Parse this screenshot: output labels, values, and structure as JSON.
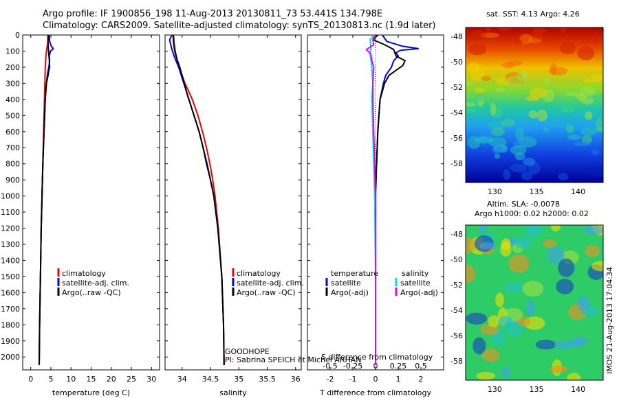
{
  "title": {
    "line1": "Argo profile: IF 1900856_198 11-Aug-2013 20130811_73 53.441S 134.798E",
    "line2": "Climatology: CARS2009. Satellite-adjusted climatology: synTS_20130813.nc (1.9d later)"
  },
  "annotations": {
    "goodhope": "GOODHOPE",
    "pi": "PI: Sabrina SPEICH et Michel ARHAN",
    "watermark": "IMOS 21-Aug-2013 17:04:34",
    "sst_title": "sat. SST: 4.13 Argo: 4.26",
    "sla_title1": "Altim. SLA: -0.0078",
    "sla_title2": "Argo h1000: 0.02 h2000: 0.02"
  },
  "colors": {
    "climatology": "#ee0000",
    "satellite": "#0000dd",
    "argo": "#000000",
    "salinity_sat": "#00dddd",
    "salinity_argo": "#ee00ee"
  },
  "chart_data": [
    {
      "type": "line",
      "id": "temperature",
      "xlabel": "temperature (deg C)",
      "ylabel": "",
      "xlim": [
        -2,
        32
      ],
      "ylim": [
        2080,
        0
      ],
      "xticks": [
        0,
        5,
        10,
        15,
        20,
        25,
        30
      ],
      "yticks": [
        0,
        100,
        200,
        300,
        400,
        500,
        600,
        700,
        800,
        900,
        1000,
        1100,
        1200,
        1300,
        1400,
        1500,
        1600,
        1700,
        1800,
        1900,
        2000
      ],
      "legend": [
        "climatology",
        "satellite-adj. clim.",
        "Argo(..raw -QC)"
      ],
      "series": [
        {
          "name": "climatology",
          "depth": [
            0,
            50,
            100,
            150,
            200,
            300,
            400,
            600,
            800,
            1000,
            1200,
            1500,
            1800,
            2050
          ],
          "values": [
            4.3,
            4.2,
            3.9,
            3.7,
            3.6,
            3.5,
            3.4,
            3.2,
            3.0,
            2.8,
            2.6,
            2.4,
            2.2,
            2.1
          ]
        },
        {
          "name": "satellite-adj. clim.",
          "depth": [
            0,
            40,
            70,
            85,
            100,
            130,
            160,
            200,
            250,
            300,
            400,
            600,
            800,
            1000,
            1200,
            1500,
            1800,
            2050
          ],
          "values": [
            4.6,
            4.7,
            5.1,
            5.6,
            4.9,
            4.6,
            4.7,
            4.5,
            4.1,
            3.9,
            3.6,
            3.3,
            3.0,
            2.8,
            2.6,
            2.4,
            2.2,
            2.1
          ]
        },
        {
          "name": "Argo(..raw -QC)",
          "depth": [
            0,
            50,
            100,
            150,
            200,
            220,
            250,
            300,
            400,
            600,
            800,
            1000,
            1200,
            1500,
            1800,
            2050
          ],
          "values": [
            4.3,
            4.3,
            4.4,
            4.6,
            4.7,
            4.5,
            4.3,
            3.9,
            3.6,
            3.3,
            3.0,
            2.8,
            2.6,
            2.4,
            2.2,
            2.1
          ]
        }
      ]
    },
    {
      "type": "line",
      "id": "salinity",
      "xlabel": "salinity",
      "ylabel": "",
      "xlim": [
        33.7,
        36.1
      ],
      "ylim": [
        2080,
        0
      ],
      "xticks": [
        34,
        34.5,
        35,
        35.5,
        36
      ],
      "legend": [
        "climatology",
        "satellite-adj. clim.",
        "Argo(..raw -QC)"
      ],
      "series": [
        {
          "name": "climatology",
          "depth": [
            0,
            50,
            100,
            150,
            200,
            300,
            400,
            500,
            600,
            700,
            800,
            900,
            1000,
            1200,
            1500,
            1800,
            2050
          ],
          "values": [
            33.85,
            33.86,
            33.88,
            33.91,
            33.95,
            34.05,
            34.18,
            34.28,
            34.36,
            34.43,
            34.49,
            34.54,
            34.58,
            34.64,
            34.7,
            34.73,
            34.74
          ]
        },
        {
          "name": "satellite-adj. clim.",
          "depth": [
            0,
            30,
            60,
            100,
            150,
            200,
            300,
            400,
            500,
            600,
            700,
            800,
            900,
            1000,
            1200,
            1500,
            1800,
            2050
          ],
          "values": [
            33.82,
            33.78,
            33.8,
            33.83,
            33.88,
            33.94,
            34.03,
            34.12,
            34.21,
            34.3,
            34.37,
            34.43,
            34.5,
            34.56,
            34.63,
            34.7,
            34.73,
            34.74
          ]
        },
        {
          "name": "Argo(..raw -QC)",
          "depth": [
            0,
            50,
            100,
            150,
            200,
            300,
            380,
            400,
            500,
            600,
            700,
            800,
            900,
            1000,
            1200,
            1500,
            1800,
            2050
          ],
          "values": [
            33.84,
            33.85,
            33.87,
            33.91,
            33.96,
            34.04,
            34.1,
            34.12,
            34.21,
            34.3,
            34.37,
            34.44,
            34.5,
            34.56,
            34.63,
            34.7,
            34.73,
            34.74
          ]
        }
      ]
    },
    {
      "type": "line",
      "id": "differences",
      "xlabel": "T difference from climatology",
      "xlabel_top": "S difference from climatology",
      "ylabel": "",
      "xlim": [
        -3,
        3
      ],
      "xlim_top": [
        -0.75,
        0.75
      ],
      "ylim": [
        2080,
        0
      ],
      "xticks": [
        -2,
        -1,
        0,
        1,
        2
      ],
      "xticks_top": [
        -0.5,
        -0.25,
        0,
        0.25,
        0.5
      ],
      "legend_headers": [
        "temperature",
        "salinity"
      ],
      "legend": [
        "satellite",
        "Argo(-adj)",
        "satellite",
        "Argo(-adj)"
      ],
      "series": [
        {
          "name": "T satellite",
          "axis": "T",
          "depth": [
            0,
            40,
            70,
            85,
            95,
            110,
            130,
            160,
            200,
            250,
            300,
            400,
            600,
            800,
            900,
            1000,
            1500,
            2050
          ],
          "values": [
            0.3,
            0.5,
            1.2,
            1.9,
            1.1,
            0.9,
            1.0,
            0.8,
            0.7,
            0.45,
            0.35,
            0.2,
            0.1,
            0.05,
            0.0,
            0.0,
            0.0,
            0.0
          ]
        },
        {
          "name": "T Argo(-adj)",
          "axis": "T",
          "depth": [
            0,
            30,
            60,
            90,
            130,
            160,
            190,
            220,
            250,
            300,
            400,
            600,
            800,
            1000,
            1500,
            2050
          ],
          "values": [
            0.1,
            -0.1,
            0.4,
            0.8,
            0.9,
            1.3,
            1.2,
            0.9,
            0.6,
            0.4,
            0.2,
            0.1,
            0.05,
            0.0,
            0.0,
            0.0
          ]
        },
        {
          "name": "S satellite",
          "axis": "S",
          "depth": [
            0,
            30,
            80,
            120,
            160,
            200,
            300,
            400,
            600,
            800,
            1000,
            1500,
            2050
          ],
          "values": [
            -0.02,
            -0.06,
            -0.05,
            -0.06,
            -0.05,
            -0.04,
            -0.03,
            -0.04,
            -0.03,
            -0.02,
            -0.01,
            0.0,
            0.0
          ]
        },
        {
          "name": "S Argo(-adj)",
          "axis": "S",
          "depth": [
            0,
            30,
            60,
            90,
            120,
            160,
            200,
            300,
            400,
            600,
            800,
            1000,
            1500,
            2050
          ],
          "values": [
            -0.01,
            -0.03,
            -0.02,
            -0.1,
            -0.05,
            -0.04,
            -0.02,
            -0.03,
            -0.03,
            -0.02,
            -0.01,
            0.0,
            0.0,
            0.0
          ]
        }
      ]
    },
    {
      "type": "heatmap",
      "id": "sst_map",
      "title": "sat. SST: 4.13 Argo: 4.26",
      "xlim": [
        126.5,
        143
      ],
      "ylim": [
        -59.5,
        -47.3
      ],
      "xticks": [
        130,
        135,
        140
      ],
      "yticks": [
        -48,
        -50,
        -52,
        -54,
        -56,
        -58
      ],
      "marker": {
        "lon": 134.8,
        "lat": -53.44
      }
    },
    {
      "type": "heatmap",
      "id": "sla_map",
      "title": "Altim. SLA: -0.0078",
      "subtitle": "Argo h1000: 0.02 h2000: 0.02",
      "xlim": [
        126.5,
        143
      ],
      "ylim": [
        -59.5,
        -47.3
      ],
      "xticks": [
        130,
        135,
        140
      ],
      "yticks": [
        -48,
        -50,
        -52,
        -54,
        -56,
        -58
      ],
      "marker": {
        "lon": 134.8,
        "lat": -53.44
      }
    }
  ]
}
